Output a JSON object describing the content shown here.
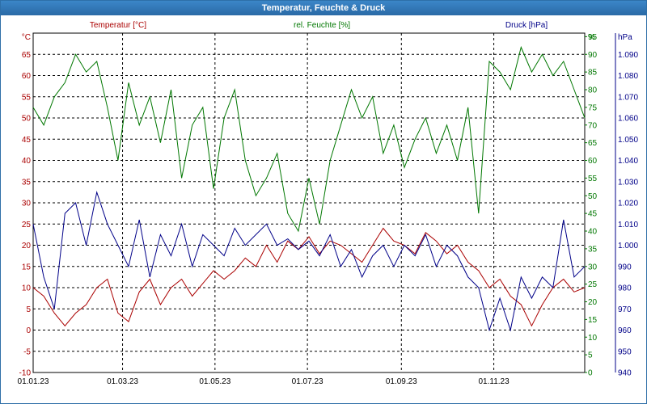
{
  "window": {
    "title": "Temperatur, Feuchte & Druck"
  },
  "chart_data": {
    "type": "line",
    "title": "Temperatur, Feuchte & Druck",
    "x": {
      "type": "date",
      "range": [
        "2023-01-01",
        "2023-12-31"
      ],
      "tick_labels": [
        "01.01.23",
        "01.03.23",
        "01.05.23",
        "01.07.23",
        "01.09.23",
        "01.11.23"
      ],
      "tick_dates": [
        "2023-01-01",
        "2023-03-01",
        "2023-05-01",
        "2023-07-01",
        "2023-09-01",
        "2023-11-01"
      ]
    },
    "grid": true,
    "axes": [
      {
        "side": "left",
        "unit": "°C",
        "range": [
          -10,
          70
        ],
        "ticks": [
          -10,
          -5,
          0,
          5,
          10,
          15,
          20,
          25,
          30,
          35,
          40,
          45,
          50,
          55,
          60,
          65
        ],
        "color": "#aa0000"
      },
      {
        "side": "right",
        "unit": "%",
        "range": [
          0,
          96
        ],
        "ticks": [
          0,
          5,
          10,
          15,
          20,
          25,
          30,
          35,
          40,
          45,
          50,
          55,
          60,
          65,
          70,
          75,
          80,
          85,
          90,
          95
        ],
        "color": "#007700"
      },
      {
        "side": "right",
        "unit": "hPa",
        "range": [
          940,
          1100
        ],
        "ticks": [
          "940",
          "950",
          "960",
          "970",
          "980",
          "990",
          "1.000",
          "1.010",
          "1.020",
          "1.030",
          "1.040",
          "1.050",
          "1.060",
          "1.070",
          "1.080",
          "1.090"
        ],
        "color": "#000088"
      }
    ],
    "legend_position": "top",
    "series": [
      {
        "name": "Temperatur [°C]",
        "axis": 0,
        "color": "#aa0000",
        "points": [
          [
            "2023-01-01",
            10
          ],
          [
            "2023-01-08",
            8
          ],
          [
            "2023-01-15",
            4
          ],
          [
            "2023-01-22",
            1
          ],
          [
            "2023-01-29",
            4
          ],
          [
            "2023-02-05",
            6
          ],
          [
            "2023-02-12",
            10
          ],
          [
            "2023-02-19",
            12
          ],
          [
            "2023-02-26",
            4
          ],
          [
            "2023-03-05",
            2
          ],
          [
            "2023-03-12",
            9
          ],
          [
            "2023-03-19",
            12
          ],
          [
            "2023-03-26",
            6
          ],
          [
            "2023-04-02",
            10
          ],
          [
            "2023-04-09",
            12
          ],
          [
            "2023-04-16",
            8
          ],
          [
            "2023-04-23",
            11
          ],
          [
            "2023-04-30",
            14
          ],
          [
            "2023-05-07",
            12
          ],
          [
            "2023-05-14",
            14
          ],
          [
            "2023-05-21",
            17
          ],
          [
            "2023-05-28",
            15
          ],
          [
            "2023-06-04",
            20
          ],
          [
            "2023-06-11",
            16
          ],
          [
            "2023-06-18",
            21
          ],
          [
            "2023-06-25",
            19
          ],
          [
            "2023-07-02",
            22
          ],
          [
            "2023-07-09",
            18
          ],
          [
            "2023-07-16",
            21
          ],
          [
            "2023-07-23",
            20
          ],
          [
            "2023-07-30",
            18
          ],
          [
            "2023-08-06",
            16
          ],
          [
            "2023-08-13",
            20
          ],
          [
            "2023-08-20",
            24
          ],
          [
            "2023-08-27",
            21
          ],
          [
            "2023-09-03",
            20
          ],
          [
            "2023-09-10",
            18
          ],
          [
            "2023-09-17",
            23
          ],
          [
            "2023-09-24",
            21
          ],
          [
            "2023-10-01",
            18
          ],
          [
            "2023-10-08",
            20
          ],
          [
            "2023-10-15",
            16
          ],
          [
            "2023-10-22",
            14
          ],
          [
            "2023-10-29",
            10
          ],
          [
            "2023-11-05",
            12
          ],
          [
            "2023-11-12",
            8
          ],
          [
            "2023-11-19",
            6
          ],
          [
            "2023-11-26",
            1
          ],
          [
            "2023-12-03",
            6
          ],
          [
            "2023-12-10",
            10
          ],
          [
            "2023-12-17",
            12
          ],
          [
            "2023-12-24",
            9
          ],
          [
            "2023-12-31",
            10
          ]
        ]
      },
      {
        "name": "rel. Feuchte [%]",
        "axis": 1,
        "color": "#007700",
        "points": [
          [
            "2023-01-01",
            75
          ],
          [
            "2023-01-08",
            70
          ],
          [
            "2023-01-15",
            78
          ],
          [
            "2023-01-22",
            82
          ],
          [
            "2023-01-29",
            90
          ],
          [
            "2023-02-05",
            85
          ],
          [
            "2023-02-12",
            88
          ],
          [
            "2023-02-19",
            75
          ],
          [
            "2023-02-26",
            60
          ],
          [
            "2023-03-05",
            82
          ],
          [
            "2023-03-12",
            70
          ],
          [
            "2023-03-19",
            78
          ],
          [
            "2023-03-26",
            65
          ],
          [
            "2023-04-02",
            80
          ],
          [
            "2023-04-09",
            55
          ],
          [
            "2023-04-16",
            70
          ],
          [
            "2023-04-23",
            75
          ],
          [
            "2023-04-30",
            52
          ],
          [
            "2023-05-07",
            72
          ],
          [
            "2023-05-14",
            80
          ],
          [
            "2023-05-21",
            60
          ],
          [
            "2023-05-28",
            50
          ],
          [
            "2023-06-04",
            55
          ],
          [
            "2023-06-11",
            62
          ],
          [
            "2023-06-18",
            45
          ],
          [
            "2023-06-25",
            40
          ],
          [
            "2023-07-02",
            55
          ],
          [
            "2023-07-09",
            42
          ],
          [
            "2023-07-16",
            60
          ],
          [
            "2023-07-23",
            70
          ],
          [
            "2023-07-30",
            80
          ],
          [
            "2023-08-06",
            72
          ],
          [
            "2023-08-13",
            78
          ],
          [
            "2023-08-20",
            62
          ],
          [
            "2023-08-27",
            70
          ],
          [
            "2023-09-03",
            58
          ],
          [
            "2023-09-10",
            66
          ],
          [
            "2023-09-17",
            72
          ],
          [
            "2023-09-24",
            62
          ],
          [
            "2023-10-01",
            70
          ],
          [
            "2023-10-08",
            60
          ],
          [
            "2023-10-15",
            75
          ],
          [
            "2023-10-22",
            45
          ],
          [
            "2023-10-29",
            88
          ],
          [
            "2023-11-05",
            85
          ],
          [
            "2023-11-12",
            80
          ],
          [
            "2023-11-19",
            92
          ],
          [
            "2023-11-26",
            85
          ],
          [
            "2023-12-03",
            90
          ],
          [
            "2023-12-10",
            84
          ],
          [
            "2023-12-17",
            88
          ],
          [
            "2023-12-24",
            80
          ],
          [
            "2023-12-31",
            72
          ]
        ]
      },
      {
        "name": "Druck [hPa]",
        "axis": 2,
        "color": "#000088",
        "points": [
          [
            "2023-01-01",
            1010
          ],
          [
            "2023-01-08",
            985
          ],
          [
            "2023-01-15",
            970
          ],
          [
            "2023-01-22",
            1015
          ],
          [
            "2023-01-29",
            1020
          ],
          [
            "2023-02-05",
            1000
          ],
          [
            "2023-02-12",
            1025
          ],
          [
            "2023-02-19",
            1010
          ],
          [
            "2023-02-26",
            1000
          ],
          [
            "2023-03-05",
            990
          ],
          [
            "2023-03-12",
            1012
          ],
          [
            "2023-03-19",
            985
          ],
          [
            "2023-03-26",
            1005
          ],
          [
            "2023-04-02",
            995
          ],
          [
            "2023-04-09",
            1010
          ],
          [
            "2023-04-16",
            990
          ],
          [
            "2023-04-23",
            1005
          ],
          [
            "2023-04-30",
            1000
          ],
          [
            "2023-05-07",
            995
          ],
          [
            "2023-05-14",
            1008
          ],
          [
            "2023-05-21",
            1000
          ],
          [
            "2023-05-28",
            1005
          ],
          [
            "2023-06-04",
            1010
          ],
          [
            "2023-06-11",
            1000
          ],
          [
            "2023-06-18",
            1003
          ],
          [
            "2023-06-25",
            998
          ],
          [
            "2023-07-02",
            1002
          ],
          [
            "2023-07-09",
            995
          ],
          [
            "2023-07-16",
            1005
          ],
          [
            "2023-07-23",
            990
          ],
          [
            "2023-07-30",
            998
          ],
          [
            "2023-08-06",
            985
          ],
          [
            "2023-08-13",
            995
          ],
          [
            "2023-08-20",
            1000
          ],
          [
            "2023-08-27",
            990
          ],
          [
            "2023-09-03",
            1000
          ],
          [
            "2023-09-10",
            995
          ],
          [
            "2023-09-17",
            1005
          ],
          [
            "2023-09-24",
            990
          ],
          [
            "2023-10-01",
            1000
          ],
          [
            "2023-10-08",
            995
          ],
          [
            "2023-10-15",
            985
          ],
          [
            "2023-10-22",
            980
          ],
          [
            "2023-10-29",
            960
          ],
          [
            "2023-11-05",
            975
          ],
          [
            "2023-11-12",
            960
          ],
          [
            "2023-11-19",
            985
          ],
          [
            "2023-11-26",
            975
          ],
          [
            "2023-12-03",
            985
          ],
          [
            "2023-12-10",
            980
          ],
          [
            "2023-12-17",
            1012
          ],
          [
            "2023-12-24",
            985
          ],
          [
            "2023-12-31",
            990
          ]
        ]
      }
    ]
  }
}
